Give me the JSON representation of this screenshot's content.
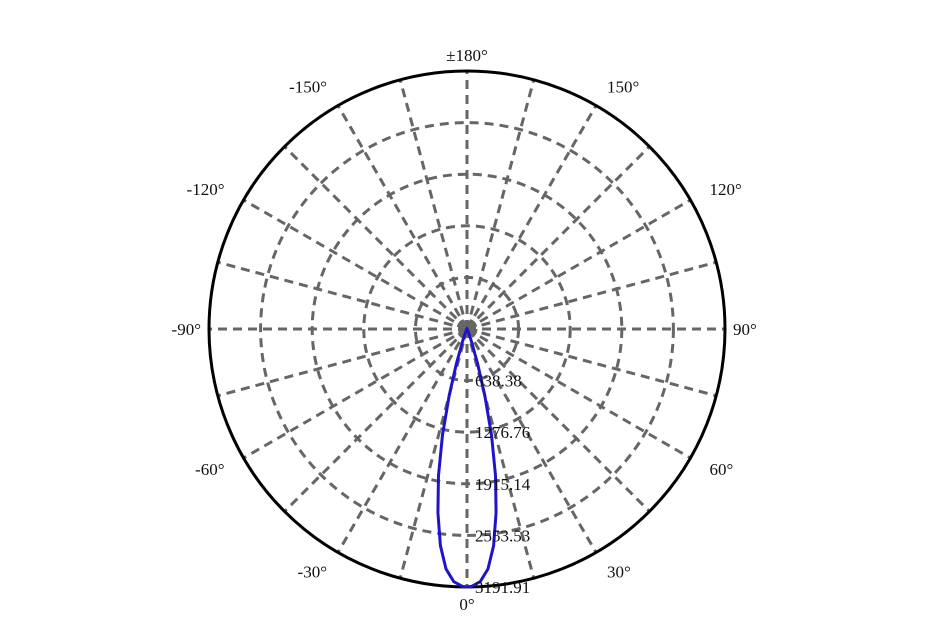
{
  "chart_data": {
    "type": "polar",
    "title": "",
    "angle_labels": [
      {
        "angle": 0,
        "label": "0°"
      },
      {
        "angle": 30,
        "label": "30°"
      },
      {
        "angle": 60,
        "label": "60°"
      },
      {
        "angle": 90,
        "label": "90°"
      },
      {
        "angle": 120,
        "label": "120°"
      },
      {
        "angle": 150,
        "label": "150°"
      },
      {
        "angle": 180,
        "label": "±180°"
      },
      {
        "angle": -150,
        "label": "-150°"
      },
      {
        "angle": -120,
        "label": "-120°"
      },
      {
        "angle": -90,
        "label": "-90°"
      },
      {
        "angle": -60,
        "label": "-60°"
      },
      {
        "angle": -30,
        "label": "-30°"
      }
    ],
    "radial_ticks": [
      {
        "value": 638.38,
        "label": "638.38"
      },
      {
        "value": 1276.76,
        "label": "1276.76"
      },
      {
        "value": 1915.14,
        "label": "1915.14"
      },
      {
        "value": 2553.53,
        "label": "2553.53"
      },
      {
        "value": 3191.91,
        "label": "3191.91"
      }
    ],
    "r_max": 3191.91,
    "spoke_step_deg": 15,
    "grid": true,
    "series": [
      {
        "color": "#1f14c8",
        "points": [
          {
            "angle": -40,
            "r": 0
          },
          {
            "angle": -30,
            "r": 5
          },
          {
            "angle": -25,
            "r": 30
          },
          {
            "angle": -20,
            "r": 150
          },
          {
            "angle": -17,
            "r": 450
          },
          {
            "angle": -15,
            "r": 850
          },
          {
            "angle": -13,
            "r": 1350
          },
          {
            "angle": -11,
            "r": 1850
          },
          {
            "angle": -9,
            "r": 2300
          },
          {
            "angle": -7,
            "r": 2700
          },
          {
            "angle": -5,
            "r": 2980
          },
          {
            "angle": -3,
            "r": 3130
          },
          {
            "angle": -1,
            "r": 3185
          },
          {
            "angle": 0,
            "r": 3191.91
          },
          {
            "angle": 1,
            "r": 3185
          },
          {
            "angle": 3,
            "r": 3130
          },
          {
            "angle": 5,
            "r": 2980
          },
          {
            "angle": 7,
            "r": 2700
          },
          {
            "angle": 9,
            "r": 2300
          },
          {
            "angle": 11,
            "r": 1850
          },
          {
            "angle": 13,
            "r": 1350
          },
          {
            "angle": 15,
            "r": 850
          },
          {
            "angle": 17,
            "r": 450
          },
          {
            "angle": 20,
            "r": 150
          },
          {
            "angle": 25,
            "r": 30
          },
          {
            "angle": 30,
            "r": 5
          },
          {
            "angle": 40,
            "r": 0
          }
        ]
      }
    ]
  }
}
